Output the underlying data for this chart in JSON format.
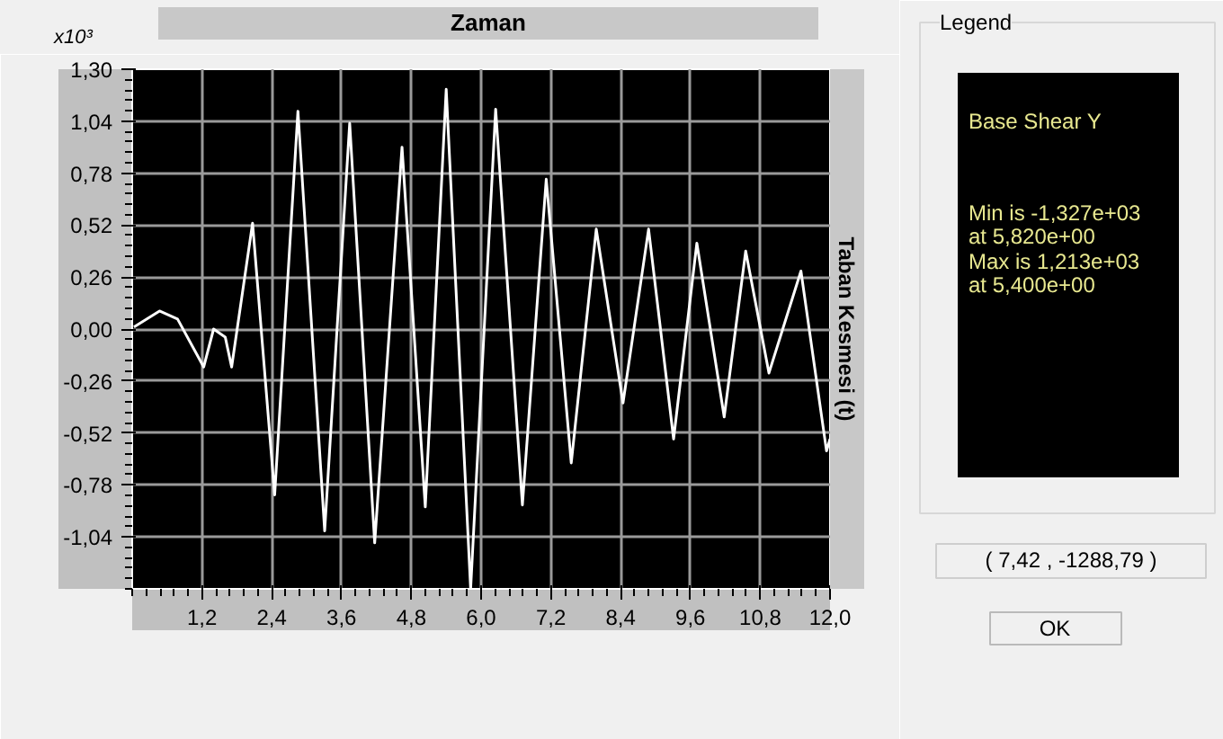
{
  "chart_data": {
    "type": "line",
    "title": "Zaman",
    "ylabel": "Taban Kesmesi (t)",
    "annotations": [
      "x10³",
      "Legend",
      "Base Shear Y",
      "Min is -1,327e+03",
      "at 5,820e+00",
      "Max is 1,213e+03",
      "at 5,400e+00",
      "( 7,42 , -1288,79 )",
      "OK"
    ],
    "x": [
      0.03,
      0.47,
      0.78,
      1.23,
      1.4,
      1.6,
      1.71,
      2.07,
      2.45,
      2.85,
      3.31,
      3.74,
      4.17,
      4.64,
      5.04,
      5.4,
      5.82,
      6.25,
      6.71,
      7.12,
      7.55,
      7.98,
      8.44,
      8.88,
      9.31,
      9.71,
      10.18,
      10.55,
      10.95,
      11.5,
      11.94,
      12.0
    ],
    "series": [
      {
        "color": "#ffffff",
        "values": [
          0.01,
          0.09,
          0.05,
          -0.19,
          0.0,
          -0.04,
          -0.19,
          0.53,
          -0.83,
          1.09,
          -1.01,
          1.03,
          -1.07,
          0.91,
          -0.89,
          1.2,
          -1.3,
          1.1,
          -0.88,
          0.75,
          -0.67,
          0.5,
          -0.37,
          0.5,
          -0.55,
          0.43,
          -0.44,
          0.39,
          -0.22,
          0.29,
          -0.61,
          -0.55
        ]
      }
    ],
    "xlim": [
      0,
      12
    ],
    "ylim": [
      -1.3,
      1.3
    ],
    "xticks": [
      {
        "value": 1.2,
        "label": "1,2"
      },
      {
        "value": 2.4,
        "label": "2,4"
      },
      {
        "value": 3.6,
        "label": "3,6"
      },
      {
        "value": 4.8,
        "label": "4,8"
      },
      {
        "value": 6.0,
        "label": "6,0"
      },
      {
        "value": 7.2,
        "label": "7,2"
      },
      {
        "value": 8.4,
        "label": "8,4"
      },
      {
        "value": 9.6,
        "label": "9,6"
      },
      {
        "value": 10.8,
        "label": "10,8"
      },
      {
        "value": 12.0,
        "label": "12,0"
      }
    ],
    "yticks": [
      {
        "value": 1.3,
        "label": "1,30"
      },
      {
        "value": 1.04,
        "label": "1,04"
      },
      {
        "value": 0.78,
        "label": "0,78"
      },
      {
        "value": 0.52,
        "label": "0,52"
      },
      {
        "value": 0.26,
        "label": "0,26"
      },
      {
        "value": 0,
        "label": "0,00"
      },
      {
        "value": -0.26,
        "label": "-0,26"
      },
      {
        "value": -0.52,
        "label": "-0,52"
      },
      {
        "value": -0.78,
        "label": "-0,78"
      },
      {
        "value": -1.04,
        "label": "-1,04"
      }
    ],
    "grid": true,
    "marker": "none",
    "line_style": "solid"
  }
}
